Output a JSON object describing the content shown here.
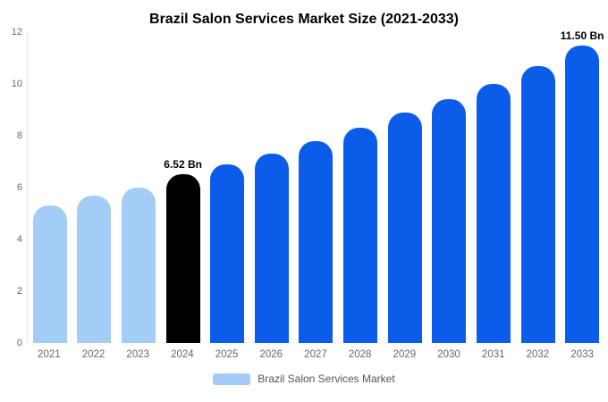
{
  "chart_data": {
    "type": "bar",
    "title": "Brazil Salon Services Market Size (2021-2033)",
    "categories": [
      "2021",
      "2022",
      "2023",
      "2024",
      "2025",
      "2026",
      "2027",
      "2028",
      "2029",
      "2030",
      "2031",
      "2032",
      "2033"
    ],
    "values": [
      5.3,
      5.7,
      6.0,
      6.52,
      6.9,
      7.3,
      7.8,
      8.3,
      8.9,
      9.4,
      10.0,
      10.7,
      11.5
    ],
    "bar_colors": [
      "#a3cdf7",
      "#a3cdf7",
      "#a3cdf7",
      "#000000",
      "#0b5ce8",
      "#0b5ce8",
      "#0b5ce8",
      "#0b5ce8",
      "#0b5ce8",
      "#0b5ce8",
      "#0b5ce8",
      "#0b5ce8",
      "#0b5ce8"
    ],
    "annotations": [
      {
        "index": 3,
        "text": "6.52 Bn"
      },
      {
        "index": 12,
        "text": "11.50 Bn"
      }
    ],
    "xlabel": "",
    "ylabel": "",
    "ylim": [
      0,
      12
    ],
    "yticks": [
      0,
      2,
      4,
      6,
      8,
      10,
      12
    ],
    "grid": false,
    "legend_position": "bottom",
    "legend": {
      "label": "Brazil Salon Services Market",
      "swatch_color": "#a3cdf7"
    }
  }
}
